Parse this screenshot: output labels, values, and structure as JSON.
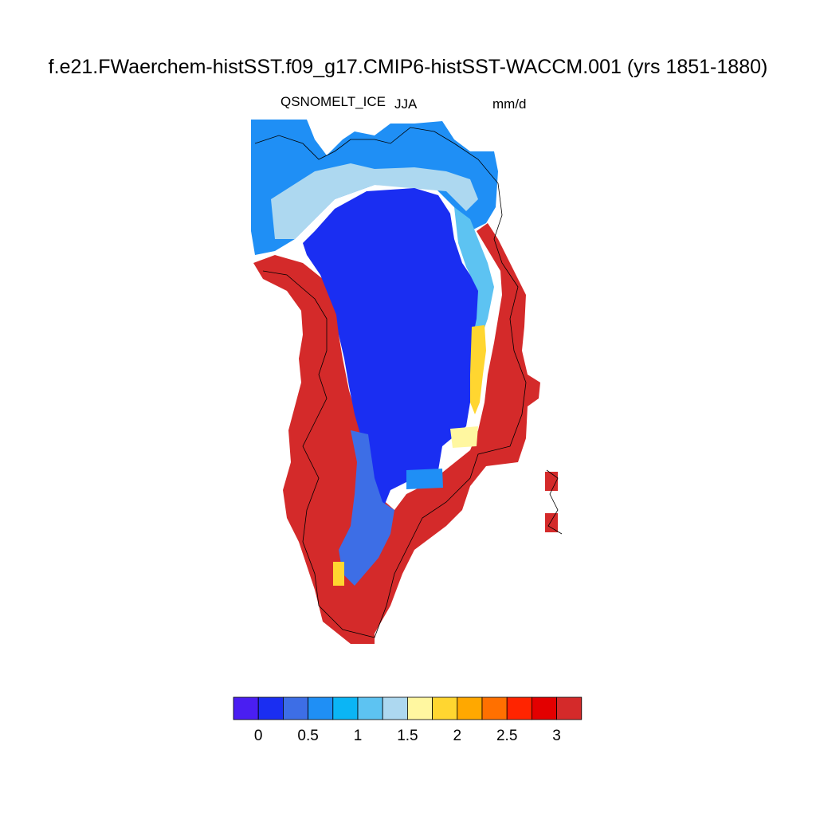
{
  "title": "f.e21.FWaerchem-histSST.f09_g17.CMIP6-histSST-WACCM.001 (yrs 1851-1880)",
  "variable": "QSNOMELT_ICE",
  "season": "JJA",
  "units": "mm/d",
  "colorbar": {
    "colors": [
      "#4a1ef2",
      "#1a2ef2",
      "#3d6ee6",
      "#1f8ff5",
      "#0bb5f5",
      "#5dc3f2",
      "#add8f0",
      "#fff7a0",
      "#ffd630",
      "#ffa800",
      "#ff7000",
      "#ff2400",
      "#e30000",
      "#d42a2a"
    ],
    "tick_labels": [
      "0",
      "0.5",
      "1",
      "1.5",
      "2",
      "2.5",
      "3"
    ]
  },
  "map_data": {
    "region": "Greenland",
    "field_classes": {
      "interior": "#1a2ef2",
      "coastal_ablation": "#d42a2a",
      "transition": [
        "#3d6ee6",
        "#1f8ff5",
        "#0bb5f5",
        "#5dc3f2",
        "#add8f0",
        "#fff7a0",
        "#ffd630",
        "#ffa800",
        "#ff7000",
        "#ff2400",
        "#e30000"
      ]
    }
  }
}
